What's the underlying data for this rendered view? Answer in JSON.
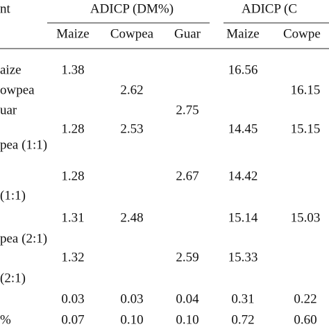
{
  "table": {
    "header": {
      "row_label": "nt",
      "groups": [
        "ADICP (DM%)",
        "ADICP (C"
      ],
      "columns": [
        "Maize",
        "Cowpea",
        "Guar",
        "Maize",
        "Cowpe"
      ]
    },
    "rows": [
      {
        "label": "aize",
        "values": [
          "1.38",
          null,
          null,
          "16.56",
          null
        ]
      },
      {
        "label": "owpea",
        "values": [
          null,
          "2.62",
          null,
          null,
          "16.15"
        ]
      },
      {
        "label": "uar",
        "values": [
          null,
          null,
          "2.75",
          null,
          null
        ]
      },
      {
        "values": [
          "1.28",
          "2.53",
          null,
          "14.45",
          "15.15"
        ]
      },
      {
        "label": "pea (1:1)"
      },
      {
        "values": [
          "1.28",
          null,
          "2.67",
          "14.42",
          null
        ]
      },
      {
        "label": "(1:1)"
      },
      {
        "values": [
          "1.31",
          "2.48",
          null,
          "15.14",
          "15.03"
        ]
      },
      {
        "label": "pea (2:1)"
      },
      {
        "values": [
          "1.32",
          null,
          "2.59",
          "15.33",
          null
        ]
      },
      {
        "label": "(2:1)"
      },
      {
        "values": [
          "0.03",
          "0.03",
          "0.04",
          "0.31",
          "0.22"
        ]
      },
      {
        "label": "%",
        "values": [
          "0.07",
          "0.10",
          "0.10",
          "0.72",
          "0.60"
        ]
      }
    ]
  }
}
